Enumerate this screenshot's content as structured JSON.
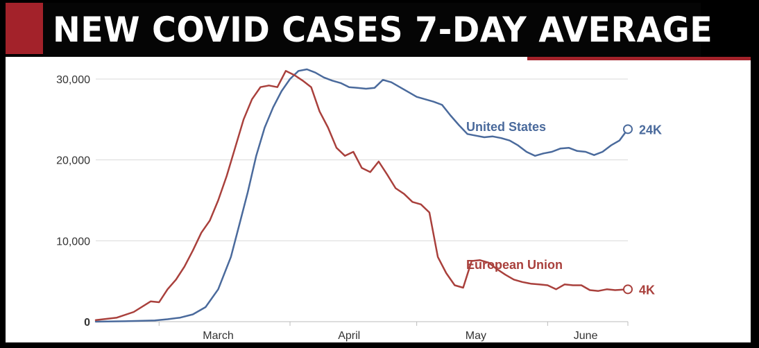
{
  "banner": {
    "title": "NEW COVID CASES 7-DAY AVERAGE"
  },
  "colors": {
    "us": "#4a6a9c",
    "eu": "#a9403c",
    "banner_red": "#a3222a",
    "grid": "#d9d9d9",
    "axis_text": "#333333"
  },
  "chart_data": {
    "type": "line",
    "title": "NEW COVID CASES 7-DAY AVERAGE",
    "xlabel": "",
    "ylabel": "",
    "x_range": [
      "2020-02-15",
      "2020-06-20"
    ],
    "ylim": [
      0,
      30000
    ],
    "y_ticks": [
      0,
      10000,
      20000,
      30000
    ],
    "y_tick_labels": [
      "0",
      "10,000",
      "20,000",
      "30,000"
    ],
    "x_tick_labels": [
      {
        "label": "March",
        "date": "2020-03-15"
      },
      {
        "label": "April",
        "date": "2020-04-15"
      },
      {
        "label": "May",
        "date": "2020-05-15"
      },
      {
        "label": "June",
        "date": "2020-06-10"
      }
    ],
    "grid": true,
    "series": [
      {
        "name": "United States",
        "end_label": "24K",
        "color_key": "us",
        "x": [
          "2020-02-15",
          "2020-02-22",
          "2020-02-29",
          "2020-03-03",
          "2020-03-06",
          "2020-03-09",
          "2020-03-12",
          "2020-03-15",
          "2020-03-18",
          "2020-03-20",
          "2020-03-22",
          "2020-03-24",
          "2020-03-26",
          "2020-03-28",
          "2020-03-30",
          "2020-04-01",
          "2020-04-03",
          "2020-04-05",
          "2020-04-07",
          "2020-04-09",
          "2020-04-11",
          "2020-04-13",
          "2020-04-15",
          "2020-04-17",
          "2020-04-19",
          "2020-04-21",
          "2020-04-23",
          "2020-04-25",
          "2020-04-27",
          "2020-04-29",
          "2020-05-01",
          "2020-05-03",
          "2020-05-05",
          "2020-05-07",
          "2020-05-09",
          "2020-05-11",
          "2020-05-13",
          "2020-05-15",
          "2020-05-17",
          "2020-05-19",
          "2020-05-21",
          "2020-05-23",
          "2020-05-25",
          "2020-05-27",
          "2020-05-29",
          "2020-05-31",
          "2020-06-02",
          "2020-06-04",
          "2020-06-06",
          "2020-06-08",
          "2020-06-10",
          "2020-06-12",
          "2020-06-14",
          "2020-06-16",
          "2020-06-18",
          "2020-06-20"
        ],
        "values": [
          0,
          50,
          150,
          300,
          500,
          900,
          1800,
          4000,
          8000,
          12000,
          16000,
          20500,
          24000,
          26500,
          28500,
          30000,
          31000,
          31200,
          30800,
          30200,
          29800,
          29500,
          29000,
          28900,
          28800,
          28900,
          29900,
          29600,
          29000,
          28400,
          27800,
          27500,
          27200,
          26800,
          25500,
          24300,
          23200,
          23000,
          22800,
          22900,
          22700,
          22400,
          21800,
          21000,
          20500,
          20800,
          21000,
          21400,
          21500,
          21100,
          21000,
          20600,
          21000,
          21800,
          22400,
          23800
        ]
      },
      {
        "name": "European Union",
        "end_label": "4K",
        "color_key": "eu",
        "x": [
          "2020-02-15",
          "2020-02-20",
          "2020-02-24",
          "2020-02-28",
          "2020-03-01",
          "2020-03-03",
          "2020-03-05",
          "2020-03-07",
          "2020-03-09",
          "2020-03-11",
          "2020-03-13",
          "2020-03-15",
          "2020-03-17",
          "2020-03-19",
          "2020-03-21",
          "2020-03-23",
          "2020-03-25",
          "2020-03-27",
          "2020-03-29",
          "2020-03-31",
          "2020-04-02",
          "2020-04-04",
          "2020-04-06",
          "2020-04-08",
          "2020-04-10",
          "2020-04-12",
          "2020-04-14",
          "2020-04-16",
          "2020-04-18",
          "2020-04-20",
          "2020-04-22",
          "2020-04-24",
          "2020-04-26",
          "2020-04-28",
          "2020-04-30",
          "2020-05-02",
          "2020-05-04",
          "2020-05-06",
          "2020-05-08",
          "2020-05-10",
          "2020-05-12",
          "2020-05-14",
          "2020-05-16",
          "2020-05-18",
          "2020-05-20",
          "2020-05-22",
          "2020-05-24",
          "2020-05-26",
          "2020-05-28",
          "2020-05-30",
          "2020-06-01",
          "2020-06-03",
          "2020-06-05",
          "2020-06-07",
          "2020-06-09",
          "2020-06-11",
          "2020-06-13",
          "2020-06-15",
          "2020-06-17",
          "2020-06-20"
        ],
        "values": [
          200,
          500,
          1200,
          2500,
          2400,
          4000,
          5200,
          6800,
          8800,
          11000,
          12500,
          15000,
          18000,
          21500,
          25000,
          27500,
          29000,
          29200,
          29000,
          31000,
          30500,
          29800,
          29000,
          26000,
          24000,
          21500,
          20500,
          21000,
          19000,
          18500,
          19800,
          18200,
          16500,
          15800,
          14800,
          14500,
          13500,
          8000,
          6000,
          4500,
          4200,
          7500,
          7600,
          7300,
          6500,
          5800,
          5200,
          4900,
          4700,
          4600,
          4500,
          4000,
          4600,
          4500,
          4500,
          3900,
          3800,
          4000,
          3900,
          4000
        ]
      }
    ]
  }
}
